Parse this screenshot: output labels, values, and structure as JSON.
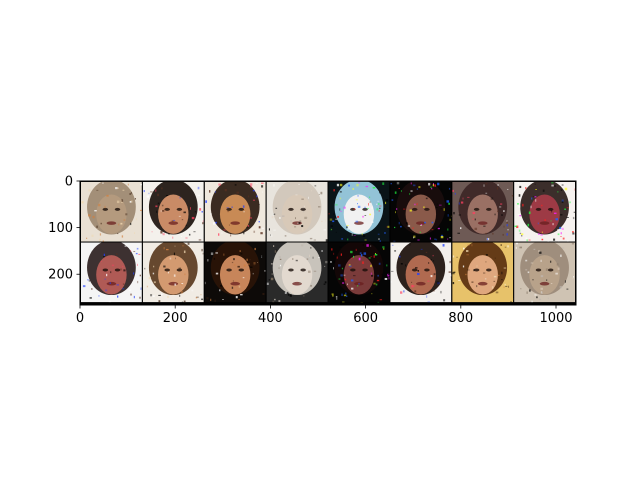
{
  "chart_data": {
    "type": "image",
    "title": "",
    "xlabel": "",
    "ylabel": "",
    "xlim": [
      0,
      1042
    ],
    "ylim": [
      266,
      0
    ],
    "grid": false,
    "x_ticks": [
      0,
      200,
      400,
      600,
      800,
      1000
    ],
    "y_ticks": [
      0,
      100,
      200
    ],
    "image_grid": {
      "rows": 2,
      "cols": 8,
      "tile_size": 128,
      "padding": 2,
      "border_color": "#000000",
      "tiles": [
        {
          "row": 0,
          "col": 0,
          "content": "face",
          "background": "#e9e0d3",
          "skin": "#b49a7e",
          "hair": "#9c8870",
          "noise": "warm"
        },
        {
          "row": 0,
          "col": 1,
          "content": "face",
          "background": "#f4f1ec",
          "skin": "#c98b66",
          "hair": "#1b120d",
          "noise": "dark"
        },
        {
          "row": 0,
          "col": 2,
          "content": "face",
          "background": "#efe8dd",
          "skin": "#c88a55",
          "hair": "#2a1a10",
          "noise": "dark"
        },
        {
          "row": 0,
          "col": 3,
          "content": "face",
          "background": "#e8e4dd",
          "skin": "#d8c9b8",
          "hair": "#cfc6b8",
          "noise": "light"
        },
        {
          "row": 0,
          "col": 4,
          "content": "face",
          "background": "#0a1418",
          "skin": "#f1f1f1",
          "hair": "#9fd2e8",
          "noise": "color"
        },
        {
          "row": 0,
          "col": 5,
          "content": "face",
          "background": "#050505",
          "skin": "#8a5a4a",
          "hair": "#1a0d0d",
          "noise": "color"
        },
        {
          "row": 0,
          "col": 6,
          "content": "face",
          "background": "#6e5a55",
          "skin": "#9a7064",
          "hair": "#3c2626",
          "noise": "dark"
        },
        {
          "row": 0,
          "col": 7,
          "content": "face",
          "background": "#f6f2ef",
          "skin": "#9d3a45",
          "hair": "#2a1d1a",
          "noise": "color"
        },
        {
          "row": 1,
          "col": 0,
          "content": "face",
          "background": "#f5f5f5",
          "skin": "#b05a55",
          "hair": "#2c2020",
          "noise": "dark"
        },
        {
          "row": 1,
          "col": 1,
          "content": "face",
          "background": "#f1ece4",
          "skin": "#d39a70",
          "hair": "#5a3a20",
          "noise": "warm"
        },
        {
          "row": 1,
          "col": 2,
          "content": "face",
          "background": "#0d0a08",
          "skin": "#c7855a",
          "hair": "#2a1508",
          "noise": "warm"
        },
        {
          "row": 1,
          "col": 3,
          "content": "face",
          "background": "#2a2a2a",
          "skin": "#e2d9cf",
          "hair": "#d6d0c8",
          "noise": "light"
        },
        {
          "row": 1,
          "col": 4,
          "content": "face",
          "background": "#050505",
          "skin": "#7a3b3a",
          "hair": "#150808",
          "noise": "color"
        },
        {
          "row": 1,
          "col": 5,
          "content": "face",
          "background": "#f3f0ec",
          "skin": "#b06a50",
          "hair": "#1b0f0a",
          "noise": "dark"
        },
        {
          "row": 1,
          "col": 6,
          "content": "face",
          "background": "#e7c26a",
          "skin": "#dfa77e",
          "hair": "#5a3010",
          "noise": "warm"
        },
        {
          "row": 1,
          "col": 7,
          "content": "face",
          "background": "#cfc3b3",
          "skin": "#b8a28a",
          "hair": "#9b8a78",
          "noise": "light"
        }
      ]
    }
  }
}
